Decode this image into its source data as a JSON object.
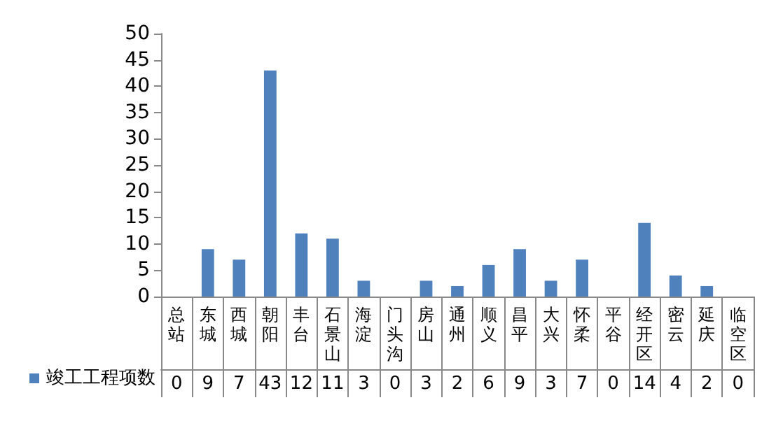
{
  "chart_data": {
    "type": "bar",
    "categories": [
      "总站",
      "东城",
      "西城",
      "朝阳",
      "丰台",
      "石景山",
      "海淀",
      "门头沟",
      "房山",
      "通州",
      "顺义",
      "昌平",
      "大兴",
      "怀柔",
      "平谷",
      "经开区",
      "密云",
      "延庆",
      "临空区"
    ],
    "series": [
      {
        "name": "竣工工程项数",
        "color": "#4f81bd",
        "values": [
          0,
          9,
          7,
          43,
          12,
          11,
          3,
          0,
          3,
          2,
          6,
          9,
          3,
          7,
          0,
          14,
          4,
          2,
          0
        ]
      }
    ],
    "ylim": [
      0,
      50
    ],
    "yticks": [
      0,
      5,
      10,
      15,
      20,
      25,
      30,
      35,
      40,
      45,
      50
    ],
    "grid": false,
    "legend": "bottom left",
    "data_labels": true
  }
}
